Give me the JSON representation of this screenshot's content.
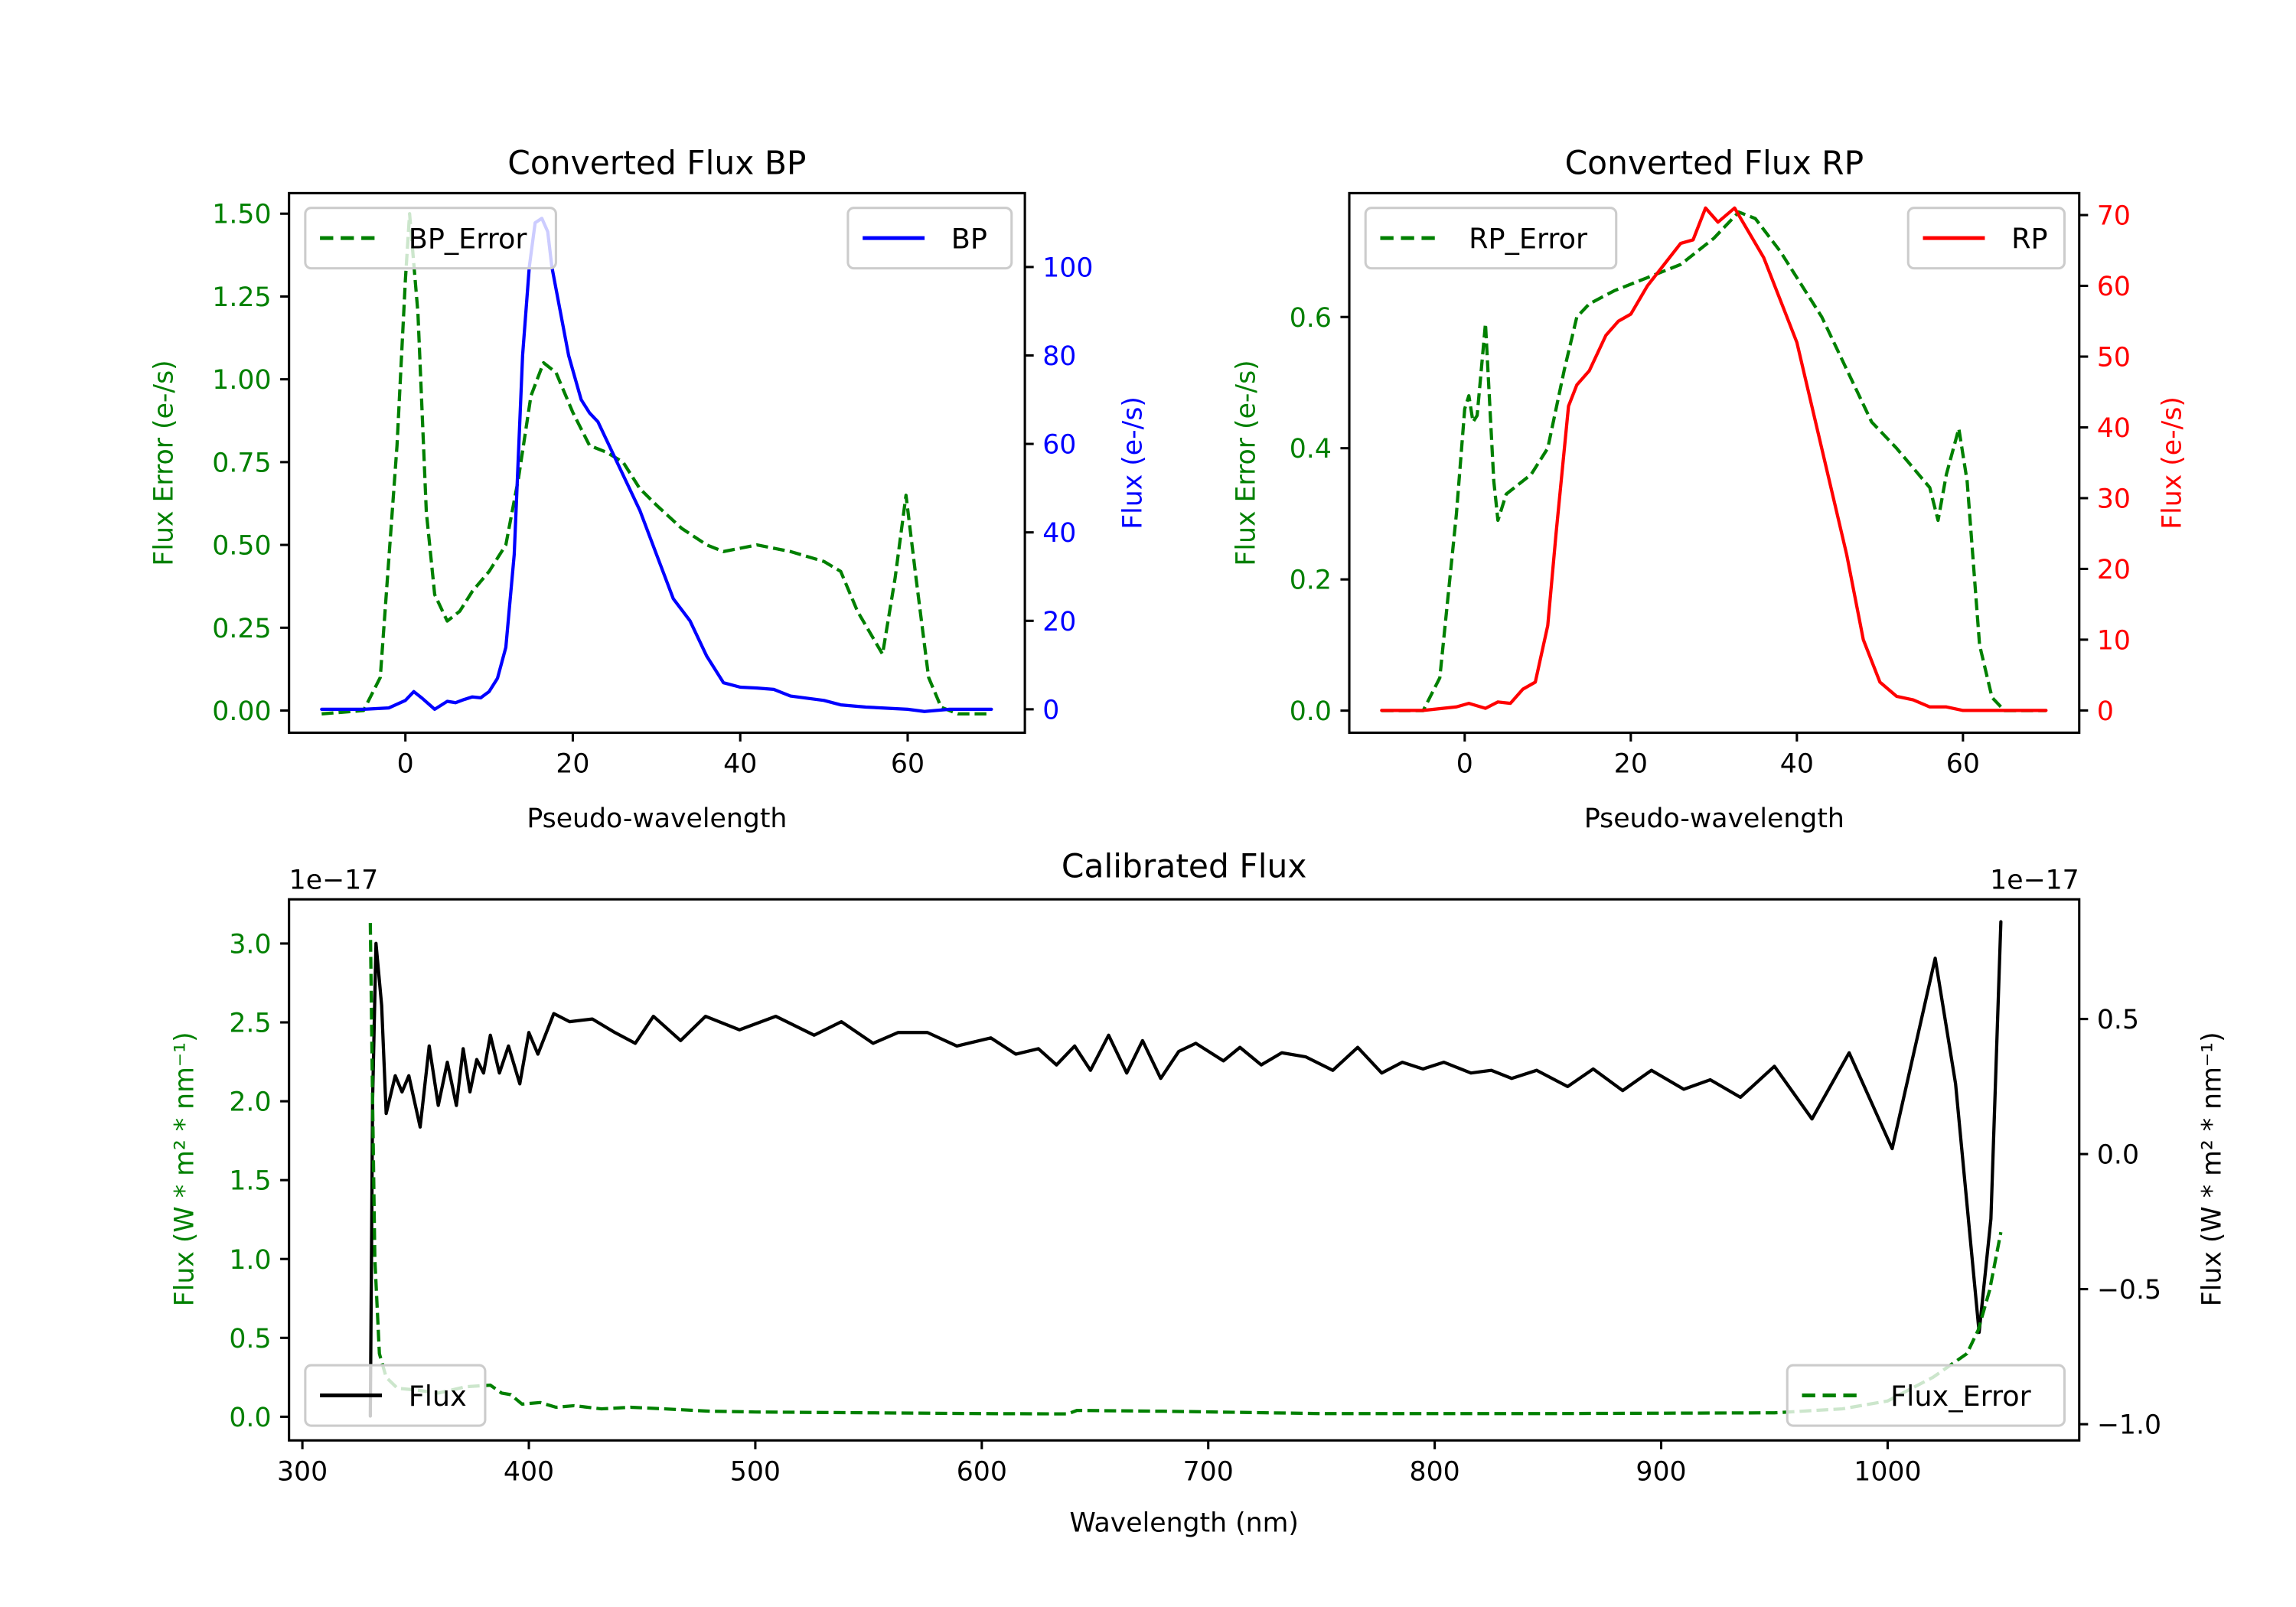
{
  "colors": {
    "bp": "#0000ff",
    "rp": "#ff0000",
    "error": "#008000",
    "flux": "#000000"
  },
  "chart_data": [
    {
      "id": "bp",
      "type": "line",
      "title": "Converted Flux BP",
      "xlabel": "Pseudo-wavelength",
      "ylabel_left": "Flux Error (e-/s)",
      "ylabel_right": "Flux (e-/s)",
      "xlim": [
        -13.9,
        74
      ],
      "ylim_left": [
        -0.067,
        1.562
      ],
      "ylim_right": [
        -5.3,
        116.7
      ],
      "xticks": [
        0,
        20,
        40,
        60
      ],
      "yticks_left": [
        0.0,
        0.25,
        0.5,
        0.75,
        1.0,
        1.25,
        1.5
      ],
      "yticks_left_labels": [
        "0.00",
        "0.25",
        "0.50",
        "0.75",
        "1.00",
        "1.25",
        "1.50"
      ],
      "yticks_right": [
        0,
        20,
        40,
        60,
        80,
        100
      ],
      "grid": false,
      "legends": [
        {
          "label": "BP_Error",
          "placement": "upper-left"
        },
        {
          "label": "BP",
          "placement": "upper-right"
        }
      ],
      "series": [
        {
          "name": "BP_Error",
          "axis": "left",
          "style": "dashed",
          "color_key": "error",
          "x": [
            -10,
            -5,
            -3,
            -1,
            0,
            0.5,
            1.5,
            2.5,
            3.5,
            5,
            6.5,
            8,
            10,
            12,
            13.5,
            15,
            16.5,
            18,
            20,
            22,
            24,
            26,
            28,
            30,
            33,
            36,
            38,
            40,
            42,
            46,
            50,
            52,
            54,
            57,
            58.5,
            59.8,
            61,
            62.5,
            64,
            66,
            70
          ],
          "y": [
            -0.01,
            0,
            0.1,
            0.8,
            1.3,
            1.5,
            1.2,
            0.6,
            0.35,
            0.27,
            0.3,
            0.36,
            0.42,
            0.5,
            0.7,
            0.95,
            1.05,
            1.02,
            0.9,
            0.8,
            0.78,
            0.75,
            0.67,
            0.62,
            0.55,
            0.5,
            0.48,
            0.49,
            0.5,
            0.48,
            0.45,
            0.42,
            0.3,
            0.17,
            0.4,
            0.65,
            0.4,
            0.1,
            0.01,
            -0.01,
            -0.01
          ]
        },
        {
          "name": "BP",
          "axis": "right",
          "style": "solid",
          "color_key": "bp",
          "x": [
            -10,
            -5,
            -2,
            0,
            1,
            2,
            3.5,
            5,
            6,
            7,
            8,
            9,
            10,
            11,
            12,
            13,
            14,
            14.8,
            15.5,
            16.3,
            17,
            17.5,
            19.5,
            21,
            22,
            23,
            25.5,
            28,
            30,
            32,
            34,
            36,
            38,
            40,
            42,
            44,
            46,
            48,
            50,
            52,
            55,
            58,
            60,
            62,
            65,
            70
          ],
          "y": [
            0,
            0,
            0.3,
            2,
            4,
            2.5,
            0,
            1.8,
            1.5,
            2.2,
            2.8,
            2.6,
            4,
            7,
            14,
            35,
            80,
            100,
            110,
            111,
            108,
            100,
            80,
            70,
            67,
            65,
            55,
            45,
            35,
            25,
            20,
            12,
            6,
            5,
            4.8,
            4.5,
            3,
            2.5,
            2,
            1,
            0.5,
            0.2,
            0,
            -0.5,
            0,
            0
          ]
        }
      ]
    },
    {
      "id": "rp",
      "type": "line",
      "title": "Converted Flux RP",
      "xlabel": "Pseudo-wavelength",
      "ylabel_left": "Flux Error (e-/s)",
      "ylabel_right": "Flux (e-/s)",
      "xlim": [
        -13.9,
        74
      ],
      "ylim_left": [
        -0.0337,
        0.7888
      ],
      "ylim_right": [
        -3.15,
        73.1
      ],
      "xticks": [
        0,
        20,
        40,
        60
      ],
      "yticks_left": [
        0.0,
        0.2,
        0.4,
        0.6
      ],
      "yticks_left_labels": [
        "0.0",
        "0.2",
        "0.4",
        "0.6"
      ],
      "yticks_right": [
        0,
        10,
        20,
        30,
        40,
        50,
        60,
        70
      ],
      "grid": false,
      "legends": [
        {
          "label": "RP_Error",
          "placement": "upper-left"
        },
        {
          "label": "RP",
          "placement": "upper-right"
        }
      ],
      "series": [
        {
          "name": "RP_Error",
          "axis": "left",
          "style": "dashed",
          "color_key": "error",
          "x": [
            -10,
            -5,
            -3,
            -1,
            0,
            0.5,
            1,
            1.5,
            2.5,
            3.5,
            4,
            5,
            6,
            8,
            10,
            12,
            13.5,
            15,
            18,
            22,
            26,
            30,
            33,
            35,
            38,
            41,
            43,
            46,
            49,
            52,
            54,
            56,
            57,
            58,
            59.5,
            60.5,
            62,
            63.5,
            65,
            70
          ],
          "y": [
            0,
            0,
            0.05,
            0.3,
            0.46,
            0.48,
            0.44,
            0.45,
            0.59,
            0.35,
            0.29,
            0.33,
            0.34,
            0.36,
            0.4,
            0.52,
            0.6,
            0.62,
            0.64,
            0.66,
            0.68,
            0.72,
            0.76,
            0.75,
            0.7,
            0.64,
            0.6,
            0.52,
            0.44,
            0.4,
            0.37,
            0.34,
            0.29,
            0.36,
            0.43,
            0.35,
            0.1,
            0.02,
            0,
            0
          ]
        },
        {
          "name": "RP",
          "axis": "right",
          "style": "solid",
          "color_key": "rp",
          "x": [
            -10,
            -5,
            -1,
            0.5,
            2.5,
            4,
            5.5,
            7,
            8.5,
            10,
            11,
            12.5,
            13.5,
            15,
            17,
            18.5,
            20,
            22,
            24,
            26,
            27.5,
            29,
            30.5,
            32.5,
            34,
            36,
            38,
            40,
            42,
            44,
            46,
            48,
            50,
            52,
            54,
            56,
            58,
            60,
            63,
            70
          ],
          "y": [
            0,
            0,
            0.5,
            1,
            0.3,
            1.2,
            1,
            3,
            4,
            12,
            25,
            43,
            46,
            48,
            53,
            55,
            56,
            60,
            63,
            66,
            66.5,
            71,
            69,
            71,
            68,
            64,
            58,
            52,
            42,
            32,
            22,
            10,
            4,
            2,
            1.5,
            0.5,
            0.5,
            0,
            0,
            0
          ]
        }
      ]
    },
    {
      "id": "calibrated",
      "type": "line",
      "title": "Calibrated Flux",
      "xlabel": "Wavelength (nm)",
      "ylabel_left": "Flux (W * m² * nm⁻¹)",
      "ylabel_right": "Flux (W * m² * nm⁻¹)",
      "offset_left": "1e−17",
      "offset_right": "1e−17",
      "xlim": [
        294.1,
        1084.6
      ],
      "ylim_left": [
        -0.15,
        3.28
      ],
      "ylim_right": [
        -1.06,
        0.943
      ],
      "xticks": [
        300,
        400,
        500,
        600,
        700,
        800,
        900,
        1000
      ],
      "yticks_left": [
        0.0,
        0.5,
        1.0,
        1.5,
        2.0,
        2.5,
        3.0
      ],
      "yticks_left_labels": [
        "0.0",
        "0.5",
        "1.0",
        "1.5",
        "2.0",
        "2.5",
        "3.0"
      ],
      "yticks_right": [
        -1.0,
        -0.5,
        0.0,
        0.5
      ],
      "yticks_right_labels": [
        "−1.0",
        "−0.5",
        "0.0",
        "0.5"
      ],
      "grid": false,
      "legends": [
        {
          "label": "Flux",
          "placement": "lower-left"
        },
        {
          "label": "Flux_Error",
          "placement": "lower-right"
        }
      ],
      "series": [
        {
          "name": "Flux",
          "axis": "right",
          "style": "solid",
          "color_key": "flux",
          "x": [
            330,
            331,
            332.5,
            335,
            337,
            341,
            344,
            347,
            352,
            356,
            360,
            364,
            368,
            371,
            374,
            377,
            380,
            383,
            387,
            391,
            396,
            400,
            404,
            411,
            418,
            428,
            438,
            447,
            455,
            467,
            478,
            493,
            509,
            526,
            538,
            552,
            563,
            576,
            589,
            604,
            615,
            625,
            633,
            641,
            648,
            656,
            664,
            671,
            679,
            687,
            694.5,
            706.7,
            714,
            723.4,
            732.5,
            743,
            755,
            766,
            776.6,
            785.7,
            794.8,
            804,
            816,
            825,
            834,
            845,
            858.7,
            870,
            883,
            895.7,
            910,
            921.7,
            935,
            950,
            966.6,
            983,
            1002,
            1021,
            1030,
            1040.4,
            1045.6,
            1050
          ],
          "y": [
            -0.97,
            0.2,
            0.78,
            0.55,
            0.15,
            0.29,
            0.23,
            0.29,
            0.1,
            0.4,
            0.18,
            0.34,
            0.18,
            0.39,
            0.23,
            0.35,
            0.3,
            0.44,
            0.3,
            0.4,
            0.26,
            0.45,
            0.37,
            0.52,
            0.49,
            0.5,
            0.45,
            0.41,
            0.51,
            0.42,
            0.51,
            0.46,
            0.51,
            0.44,
            0.49,
            0.41,
            0.45,
            0.45,
            0.4,
            0.43,
            0.37,
            0.39,
            0.33,
            0.4,
            0.31,
            0.44,
            0.3,
            0.42,
            0.28,
            0.38,
            0.41,
            0.345,
            0.395,
            0.33,
            0.375,
            0.36,
            0.31,
            0.395,
            0.3,
            0.34,
            0.315,
            0.34,
            0.3,
            0.31,
            0.28,
            0.31,
            0.25,
            0.315,
            0.235,
            0.31,
            0.24,
            0.275,
            0.21,
            0.325,
            0.13,
            0.375,
            0.02,
            0.725,
            0.26,
            -0.66,
            -0.24,
            0.86
          ]
        },
        {
          "name": "Flux_Error",
          "axis": "left",
          "style": "dashed",
          "color_key": "error",
          "x": [
            330,
            331,
            332,
            334,
            337,
            342,
            350,
            360,
            372,
            383,
            388,
            392,
            397,
            405,
            412,
            420,
            432,
            445,
            460,
            480,
            500,
            550,
            600,
            638,
            642,
            680,
            750,
            850,
            950,
            980,
            1000,
            1020,
            1035,
            1040,
            1045,
            1050
          ],
          "y": [
            3.13,
            2.0,
            1.0,
            0.4,
            0.25,
            0.18,
            0.17,
            0.15,
            0.19,
            0.2,
            0.15,
            0.14,
            0.08,
            0.09,
            0.06,
            0.07,
            0.05,
            0.06,
            0.05,
            0.035,
            0.03,
            0.025,
            0.02,
            0.018,
            0.04,
            0.035,
            0.02,
            0.02,
            0.025,
            0.05,
            0.1,
            0.25,
            0.4,
            0.55,
            0.8,
            1.17
          ]
        }
      ]
    }
  ]
}
